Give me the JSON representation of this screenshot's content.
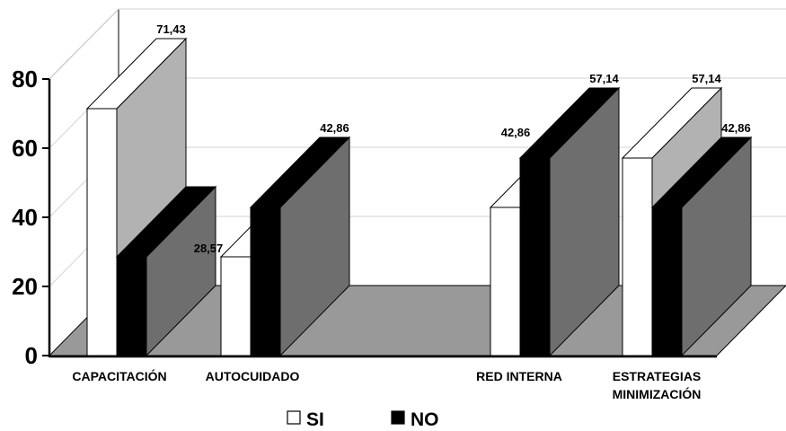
{
  "chart_data": {
    "type": "bar",
    "title": "",
    "xlabel": "",
    "ylabel": "",
    "ylim": [
      0,
      80
    ],
    "yticks": [
      "0",
      "20",
      "40",
      "60",
      "80"
    ],
    "categories": [
      [
        "CAPACITACIÓN"
      ],
      [
        "AUTOCUIDADO"
      ],
      [
        "RED INTERNA"
      ],
      [
        "ESTRATEGIAS",
        "MINIMIZACIÓN"
      ]
    ],
    "series": [
      {
        "name": "SI",
        "values": [
          71.43,
          28.57,
          42.86,
          57.14
        ],
        "labels": [
          "71,43",
          "28,57",
          "42,86",
          "57,14"
        ],
        "color": "#ffffff"
      },
      {
        "name": "NO",
        "values": [
          28.57,
          42.86,
          57.14,
          42.86
        ],
        "labels": [
          "",
          "42,86",
          "57,14",
          "42,86"
        ],
        "color": "#000000"
      }
    ],
    "grid": true,
    "legend_position": "bottom",
    "colors": {
      "floor": "#999999",
      "si_side": "#b2b2b2",
      "no_side": "#6e6e6e",
      "grid": "#d9d9d9"
    }
  }
}
